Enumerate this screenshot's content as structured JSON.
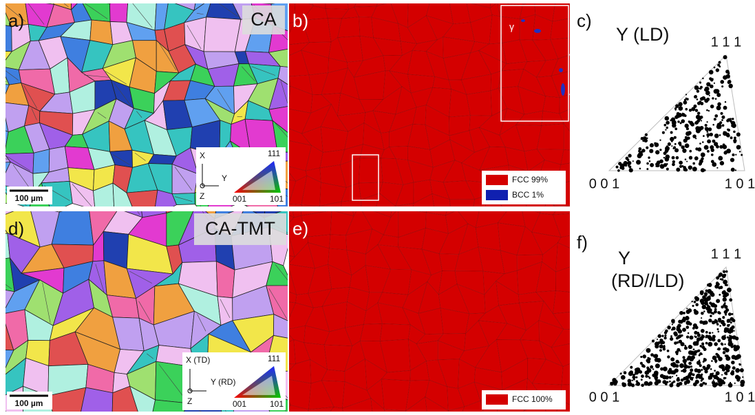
{
  "panels": [
    {
      "label": "a)",
      "title": "CA",
      "scale_bar": "100 µm",
      "key": {
        "x_axis": "X",
        "y_axis": "Y",
        "z_axis": "Z",
        "top": "111",
        "left": "001",
        "right": "101"
      }
    },
    {
      "label": "b)",
      "inset": "γ",
      "legend": [
        "FCC 99%",
        "BCC 1%"
      ]
    },
    {
      "label": "c)",
      "title": [
        "Y (LD)"
      ],
      "top": "1 1 1",
      "left": "0 0 1",
      "right": "1 0 1"
    },
    {
      "label": "d)",
      "title": "CA-TMT",
      "scale_bar": "100 µm",
      "key": {
        "x_axis": "X (TD)",
        "y_axis": "Y (RD)",
        "z_axis": "Z",
        "top": "111",
        "left": "001",
        "right": "101"
      }
    },
    {
      "label": "e)",
      "legend": [
        "FCC 100%"
      ]
    },
    {
      "label": "f)",
      "title": [
        "Y",
        "(RD//LD)"
      ],
      "top": "1 1 1",
      "left": "0 0 1",
      "right": "1 0 1"
    }
  ]
}
